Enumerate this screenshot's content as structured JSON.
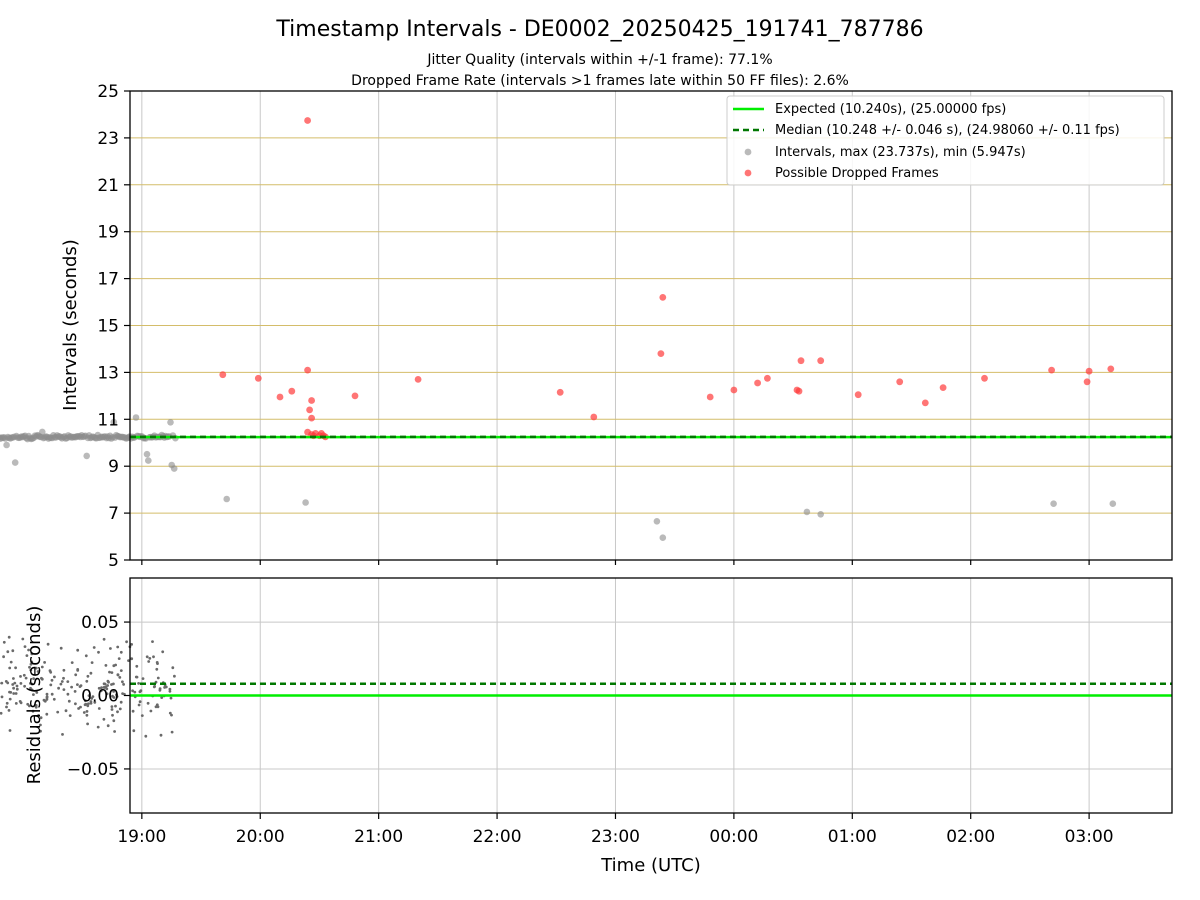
{
  "figure": {
    "title": "Timestamp Intervals - DE0002_20250425_191741_787786",
    "subtitle_1": "Jitter Quality (intervals within +/-1 frame): 77.1%",
    "subtitle_2": "Dropped Frame Rate (intervals >1 frames late within 50 FF files): 2.6%",
    "xlabel": "Time (UTC)"
  },
  "colors": {
    "expected": "#00ee00",
    "median": "#007700",
    "intervals": "#8c8c8c",
    "dropped": "#ff3b3b",
    "hgrid_top": "#d4bd6a",
    "grid": "#c8c8c8",
    "residual_points": "#6a6a6a"
  },
  "chart_data": [
    {
      "id": "intervals",
      "type": "scatter",
      "ylabel": "Intervals (seconds)",
      "ylim": [
        5,
        25
      ],
      "yticks": [
        "5",
        "7",
        "9",
        "11",
        "13",
        "15",
        "17",
        "19",
        "21",
        "23",
        "25"
      ],
      "xlim_hours": [
        18.9,
        27.7
      ],
      "xticks": [
        "19:00",
        "20:00",
        "21:00",
        "22:00",
        "23:00",
        "00:00",
        "01:00",
        "02:00",
        "03:00"
      ],
      "grid": true,
      "legend_position": "top-right",
      "legend": [
        {
          "label": "Expected (10.240s), (25.00000 fps)",
          "kind": "solid-line",
          "color": "#00ee00"
        },
        {
          "label": "Median (10.248 +/- 0.046 s), (24.98060 +/- 0.11 fps)",
          "kind": "dashed-line",
          "color": "#007700"
        },
        {
          "label": "Intervals, max (23.737s), min (5.947s)",
          "kind": "marker",
          "color": "#8c8c8c"
        },
        {
          "label": "Possible Dropped Frames",
          "kind": "marker",
          "color": "#ff3b3b"
        }
      ],
      "expected": 10.24,
      "median": 10.248,
      "time_span": [
        "19:17",
        "03:41"
      ],
      "series": [
        {
          "name": "Possible Dropped Frames",
          "points": [
            [
              "19:41",
              12.9
            ],
            [
              "19:59",
              12.75
            ],
            [
              "20:10",
              11.95
            ],
            [
              "20:16",
              12.2
            ],
            [
              "20:24",
              23.74
            ],
            [
              "20:24",
              13.1
            ],
            [
              "20:25",
              11.4
            ],
            [
              "20:26",
              11.8
            ],
            [
              "20:26",
              11.05
            ],
            [
              "20:24",
              10.45
            ],
            [
              "20:26",
              10.35
            ],
            [
              "20:27",
              10.3
            ],
            [
              "20:28",
              10.4
            ],
            [
              "20:30",
              10.3
            ],
            [
              "20:31",
              10.4
            ],
            [
              "20:32",
              10.3
            ],
            [
              "20:33",
              10.25
            ],
            [
              "20:48",
              12.0
            ],
            [
              "21:20",
              12.7
            ],
            [
              "22:32",
              12.15
            ],
            [
              "22:49",
              11.1
            ],
            [
              "23:23",
              13.8
            ],
            [
              "23:24",
              16.2
            ],
            [
              "23:48",
              11.95
            ],
            [
              "24:00",
              12.25
            ],
            [
              "24:12",
              12.55
            ],
            [
              "24:17",
              12.75
            ],
            [
              "24:32",
              12.25
            ],
            [
              "24:33",
              12.2
            ],
            [
              "24:34",
              13.5
            ],
            [
              "24:44",
              13.5
            ],
            [
              "25:03",
              12.05
            ],
            [
              "25:24",
              12.6
            ],
            [
              "25:37",
              11.7
            ],
            [
              "25:46",
              12.35
            ],
            [
              "26:07",
              12.75
            ],
            [
              "26:41",
              13.1
            ],
            [
              "26:59",
              12.6
            ],
            [
              "27:00",
              13.05
            ],
            [
              "27:11",
              13.15
            ]
          ]
        }
      ]
    },
    {
      "id": "residuals",
      "type": "scatter",
      "ylabel": "Residuals (seconds)",
      "ylim": [
        -0.08,
        0.08
      ],
      "yticks": [
        "−0.05",
        "0.00",
        "0.05"
      ],
      "grid": true,
      "expected_residual": 0.0,
      "median_residual": 0.008
    }
  ]
}
